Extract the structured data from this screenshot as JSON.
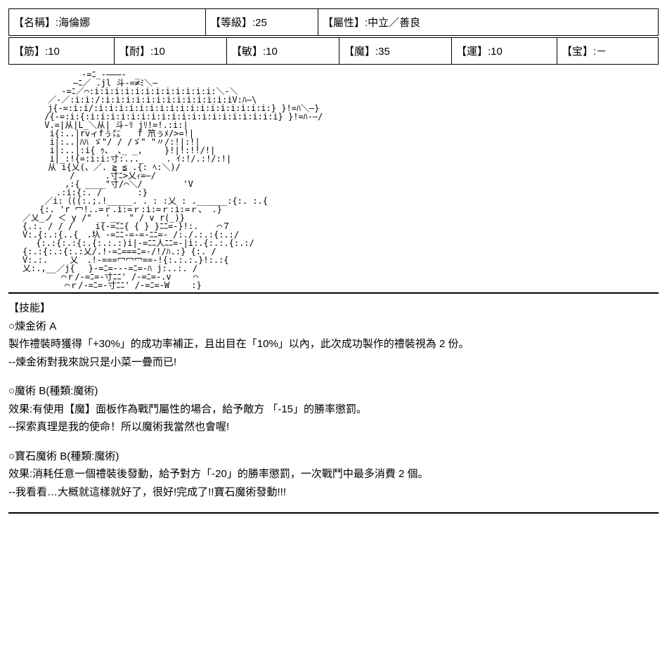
{
  "header": {
    "row1": {
      "name_label": "【名稱】:",
      "name_value": "海倫娜",
      "level_label": "【等級】:",
      "level_value": "25",
      "align_label": "【屬性】:",
      "align_value": "中立／善良"
    },
    "row2": {
      "str_label": "【筋】:",
      "str_value": "10",
      "end_label": "【耐】:",
      "end_value": "10",
      "agi_label": "【敏】:",
      "agi_value": "10",
      "mag_label": "【魔】:",
      "mag_value": "35",
      "luk_label": "【運】:",
      "luk_value": "10",
      "np_label": "【宝】:",
      "np_value": "－"
    }
  },
  "ascii_art": "　　　　　　　-=ﾆ_-―――-　_\n　　　　　　―ﾆ／ .jl 斗-=≠ﾐ＼―\n　　　　 -=ﾆ／⌒:i:i:i:i:i:i:i:i:i:i:i:i:＼-＼\n　　　／-／:i:i:/:i:i:i:i:i:i:i:i:i:i:i:i:iV:ﾊ―\\\n　　　j{-=:i:i/:i:i:i:i:i:i:i:i:i:i:i:i:i:i:i:i:i:} }!=ﾊ＼―}\n　　 /{-=:i:{:i:i:i:i:i:i:i:i:i:i:i:i:i:i:i:i:i:i:i} }!=ﾊ-―/\n　　 V.=|从|L_＼从| 斗-ﾘ jﾘ!=!.:i:|\n　 　 i{:..|rvィfぅ㍍　　f 笊ぅﾒ/>=!|\n　 　 i|:..|ﾊﾊ ゞ\"/ / /ゞ\" \"〃/:!|:!|\n　 　 i|:..|:i{ ｩ、 ､_ _,　　 }!|!:!!/!|\n　 　 i|_:!{=:i:i:寸:..._　　 . ｲ:!/.:!/:!|\n　　　从 i{乂(、／. ≧ ≦ .{: ﾍ:＼)/\n　　　　　 /　　　 .寸ﾆ>乂ｨ=―/\n　　　　　,:{ ____\"寸/⌒＼/　 　 　 'V\n　　　　.:i:{:. /　　 　 :}\n　　 ／i:（((:.;.!_____. . : :乂 : .______:{:. :.{\n　　{:. 'r 冖!..=ｒ.i:=ｒ:i:=ｒ:i:=ｒ、 .}\n／乂_ノ ＜ y /\"　_'__　\" / v r(_)}\n{.:. / / /　 　i{-=ﾆﾆ{ { } }ﾆﾆ=-}!:. 　 ⌒７\nV:.{:.:{..{　.圦 -=ﾆﾆ-=‐=-ﾆﾆ=- /:./.:.:{:.:/\n　 {:.:{:.:{:.{:.:.:)i|-=ﾆﾆ人ﾆﾆ=-|i:.{:.:.{:.:/\n{:.:{:.:{:.:乂/.!-=ﾆ===ﾆ=-/!/ﾊ.:} {:. /\nV:.:. 　　乂　.!-===冖冖冖==-!{:.:.:.}!:.:{\n乂:.,__／j{　 }-=ﾆ=-‐-=ﾆ=-ﾊ j:..:. /\n　　　　 ⌒ｒ/-=ﾆ=-寸ﾆﾆ' /-=ﾆ=-.v　　 ⌒\n　　　　　⌒ｒ/-=ﾆ=-寸ﾆﾆ' /-=ﾆ=-W　　 :}",
  "skills": {
    "header": "【技能】",
    "list": [
      {
        "title": "○煉金術 A",
        "effect": "製作禮裝時獲得「+30%」的成功率補正，且出目在「10%」以內，此次成功製作的禮裝視為 2 份。",
        "flavor": "--煉金術對我來說只是小菜一疊而已!"
      },
      {
        "title": "○魔術 B(種類:魔術)",
        "effect": "效果:有使用【魔】面板作為戰鬥屬性的場合，給予敵方 「-15」的勝率懲罰。",
        "flavor": "--探索真理是我的使命！所以魔術我當然也會喔!"
      },
      {
        "title": "○寶石魔術 B(種類:魔術)",
        "effect": "效果:消耗任意一個禮裝後發動，給予對方「-20」的勝率懲罰，一次戰鬥中最多消費 2 個。",
        "flavor": "--我看看…大概就這樣就好了，很好!完成了!!寶石魔術發動!!!"
      }
    ]
  }
}
